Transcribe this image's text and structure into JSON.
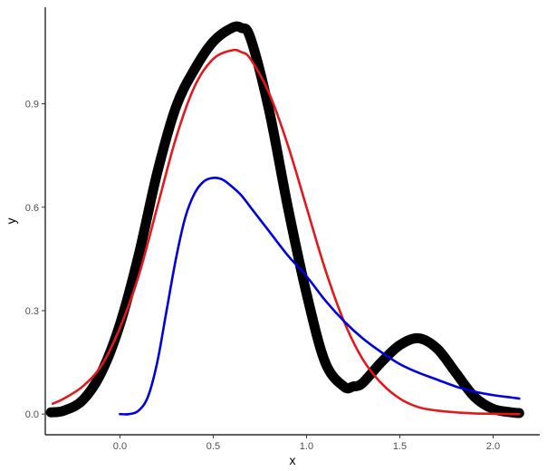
{
  "chart_data": {
    "type": "line",
    "title": "",
    "xlabel": "x",
    "ylabel": "y",
    "xlim": [
      -0.4,
      2.25
    ],
    "ylim": [
      -0.06,
      1.18
    ],
    "x_ticks": [
      0.0,
      0.5,
      1.0,
      1.5,
      2.0
    ],
    "x_tick_labels": [
      "0.0",
      "0.5",
      "1.0",
      "1.5",
      "2.0"
    ],
    "y_ticks": [
      0.0,
      0.3,
      0.6,
      0.9
    ],
    "y_tick_labels": [
      "0.0",
      "0.3",
      "0.6",
      "0.9"
    ],
    "grid": false,
    "legend": "none",
    "series": [
      {
        "color": "#000000",
        "style": "thick-points",
        "x": [
          -0.37,
          -0.3,
          -0.2,
          -0.1,
          0.0,
          0.1,
          0.2,
          0.3,
          0.4,
          0.5,
          0.6,
          0.65,
          0.7,
          0.8,
          0.9,
          1.0,
          1.1,
          1.2,
          1.25,
          1.3,
          1.4,
          1.5,
          1.6,
          1.7,
          1.8,
          1.9,
          2.0,
          2.1,
          2.14
        ],
        "y": [
          0.005,
          0.01,
          0.04,
          0.12,
          0.26,
          0.46,
          0.7,
          0.89,
          1.0,
          1.08,
          1.12,
          1.12,
          1.09,
          0.88,
          0.6,
          0.35,
          0.15,
          0.08,
          0.08,
          0.09,
          0.15,
          0.2,
          0.22,
          0.19,
          0.12,
          0.05,
          0.015,
          0.005,
          0.003
        ]
      },
      {
        "color": "#e3181c",
        "style": "line",
        "x": [
          -0.36,
          -0.3,
          -0.2,
          -0.1,
          0.0,
          0.1,
          0.2,
          0.3,
          0.4,
          0.5,
          0.6,
          0.65,
          0.7,
          0.8,
          0.9,
          1.0,
          1.1,
          1.2,
          1.3,
          1.4,
          1.5,
          1.6,
          1.7,
          1.8,
          1.9,
          2.0,
          2.1,
          2.14
        ],
        "y": [
          0.03,
          0.045,
          0.08,
          0.14,
          0.25,
          0.4,
          0.6,
          0.8,
          0.95,
          1.03,
          1.055,
          1.05,
          1.03,
          0.93,
          0.78,
          0.6,
          0.42,
          0.27,
          0.16,
          0.09,
          0.045,
          0.02,
          0.01,
          0.005,
          0.002,
          0.001,
          0.0,
          0.0
        ]
      },
      {
        "color": "#0000dd",
        "style": "line",
        "x": [
          0.0,
          0.05,
          0.1,
          0.15,
          0.2,
          0.25,
          0.3,
          0.35,
          0.4,
          0.45,
          0.5,
          0.55,
          0.6,
          0.65,
          0.7,
          0.8,
          0.9,
          1.0,
          1.1,
          1.2,
          1.3,
          1.4,
          1.5,
          1.6,
          1.7,
          1.8,
          1.9,
          2.0,
          2.1,
          2.14
        ],
        "y": [
          0.0,
          0.0,
          0.01,
          0.05,
          0.15,
          0.3,
          0.45,
          0.57,
          0.64,
          0.675,
          0.685,
          0.68,
          0.66,
          0.635,
          0.6,
          0.53,
          0.46,
          0.4,
          0.33,
          0.27,
          0.22,
          0.18,
          0.145,
          0.12,
          0.1,
          0.08,
          0.065,
          0.055,
          0.048,
          0.045
        ]
      }
    ]
  }
}
